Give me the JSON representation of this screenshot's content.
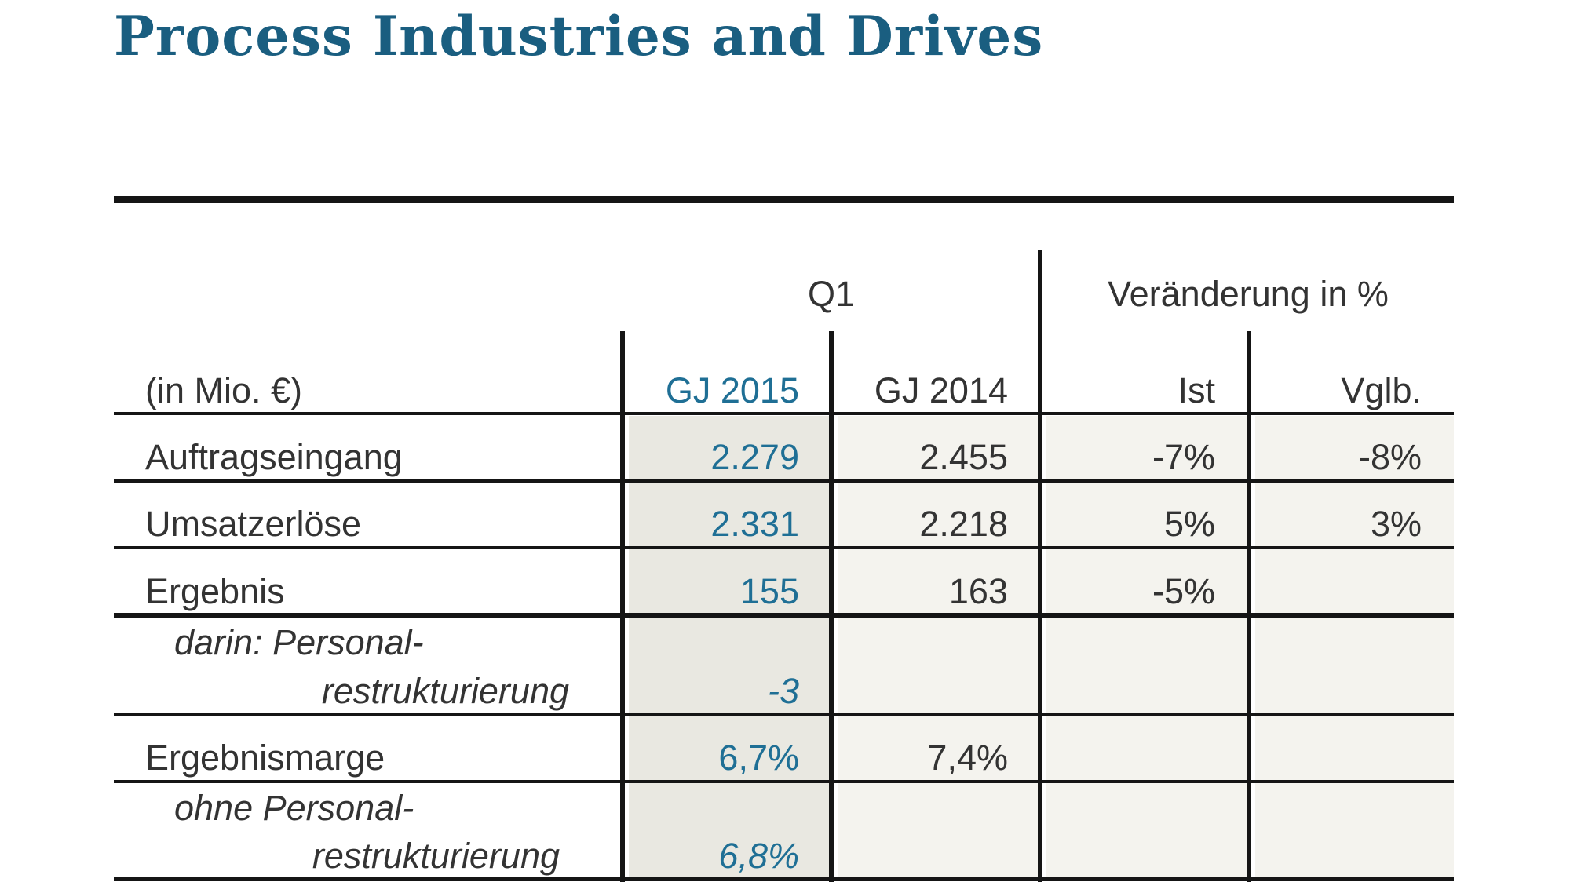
{
  "title": "Process Industries and Drives",
  "table": {
    "unit_label": "(in Mio. €)",
    "group_headers": {
      "q1": "Q1",
      "change": "Veränderung in %"
    },
    "columns": {
      "fy2015": "GJ 2015",
      "fy2014": "GJ 2014",
      "ist": "Ist",
      "vglb": "Vglb."
    },
    "rows": [
      {
        "label": "Auftragseingang",
        "fy2015": "2.279",
        "fy2014": "2.455",
        "ist": "-7%",
        "vglb": "-8%"
      },
      {
        "label": "Umsatzerlöse",
        "fy2015": "2.331",
        "fy2014": "2.218",
        "ist": "5%",
        "vglb": "3%"
      },
      {
        "label": "Ergebnis",
        "fy2015": "155",
        "fy2014": "163",
        "ist": "-5%",
        "vglb": ""
      },
      {
        "label_line1": "darin: Personal-",
        "label_line2": "restrukturierung",
        "fy2015": "-3",
        "fy2014": "",
        "ist": "",
        "vglb": ""
      },
      {
        "label": "Ergebnismarge",
        "fy2015": "6,7%",
        "fy2014": "7,4%",
        "ist": "",
        "vglb": ""
      },
      {
        "label_line1": "ohne Personal-",
        "label_line2": "restrukturierung",
        "fy2015": "6,8%",
        "fy2014": "",
        "ist": "",
        "vglb": ""
      }
    ]
  }
}
